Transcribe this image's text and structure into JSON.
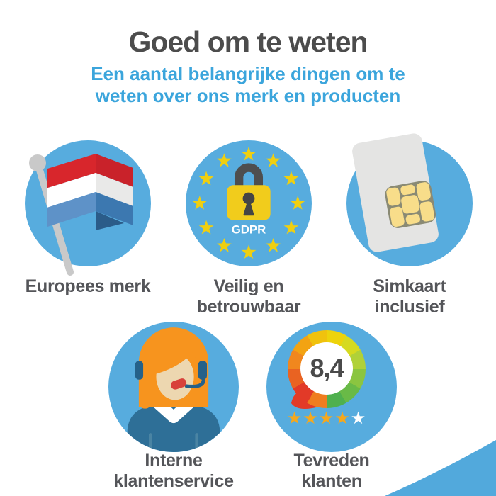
{
  "infographic": {
    "title": "Goed om te weten",
    "subtitle_lines": [
      "Een aantal belangrijke dingen om te",
      "weten over ons merk en producten"
    ]
  },
  "features": [
    {
      "id": "europees-merk",
      "label": "Europees merk",
      "icon": "dutch-flag-icon"
    },
    {
      "id": "veilig-en-betrouwbaar",
      "label": "Veilig en betrouwbaar",
      "icon": "gdpr-padlock-icon",
      "badge": "GDPR"
    },
    {
      "id": "simkaart-inclusief",
      "label": "Simkaart inclusief",
      "icon": "sim-card-icon"
    },
    {
      "id": "interne-klantenservice",
      "label": "Interne klantenservice",
      "icon": "support-agent-icon"
    },
    {
      "id": "tevreden-klanten",
      "label": "Tevreden klanten",
      "icon": "review-score-gauge-icon",
      "score": "8,4",
      "stars_filled": 4,
      "stars_total": 5
    }
  ],
  "colors": {
    "circle_blue": "#57ACDE",
    "wave_blue": "#52A9DC",
    "title_gray": "#4C4C4C",
    "subtitle_blue": "#3BA5DC",
    "label_gray": "#545559",
    "flag_red": "#D8262C",
    "flag_blue": "#5E92C8",
    "eu_star_yellow": "#EFCF10",
    "lock_yellow": "#F1CC1C",
    "sim_chip_gold": "#F8DD8A",
    "hair_orange": "#F7941E",
    "agent_body_blue": "#2E6F97",
    "mic_red": "#D8423B",
    "review_star_gold": "#F5A81E",
    "score_text": "#4A4A4A"
  }
}
